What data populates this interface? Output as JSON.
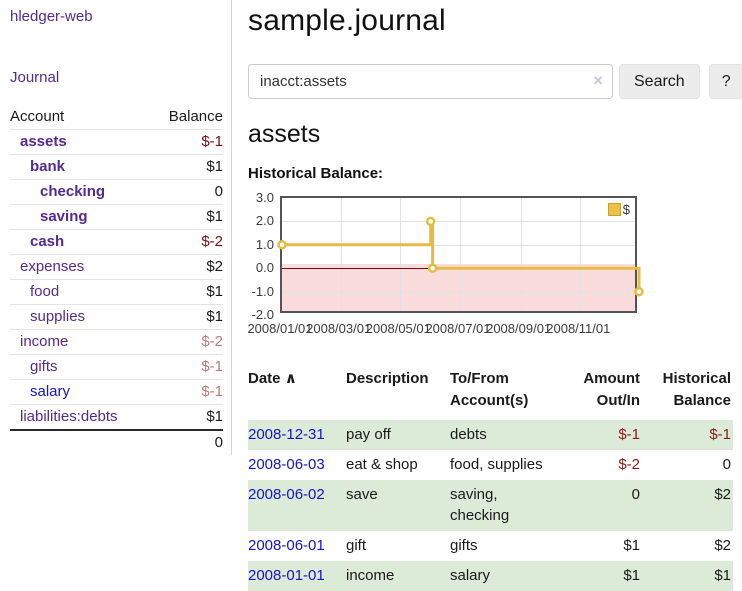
{
  "app": {
    "title": "hledger-web"
  },
  "sidebar": {
    "journal_label": "Journal",
    "accounts_table": {
      "col_account": "Account",
      "col_balance": "Balance",
      "rows": [
        {
          "label": "assets",
          "balance": "$-1",
          "indent": 1,
          "bold": true,
          "link": "purple",
          "bal_class": "neg-strong"
        },
        {
          "label": "bank",
          "balance": "$1",
          "indent": 2,
          "bold": true,
          "link": "purple",
          "bal_class": ""
        },
        {
          "label": "checking",
          "balance": "0",
          "indent": 3,
          "bold": true,
          "link": "purple",
          "bal_class": ""
        },
        {
          "label": "saving",
          "balance": "$1",
          "indent": 3,
          "bold": true,
          "link": "purple",
          "bal_class": ""
        },
        {
          "label": "cash",
          "balance": "$-2",
          "indent": 2,
          "bold": true,
          "link": "purple",
          "bal_class": "neg-strong"
        },
        {
          "label": "expenses",
          "balance": "$2",
          "indent": 1,
          "bold": false,
          "link": "purple",
          "bal_class": ""
        },
        {
          "label": "food",
          "balance": "$1",
          "indent": 2,
          "bold": false,
          "link": "purple",
          "bal_class": ""
        },
        {
          "label": "supplies",
          "balance": "$1",
          "indent": 2,
          "bold": false,
          "link": "purple",
          "bal_class": ""
        },
        {
          "label": "income",
          "balance": "$-2",
          "indent": 1,
          "bold": false,
          "link": "purple",
          "bal_class": "neg-dim"
        },
        {
          "label": "gifts",
          "balance": "$-1",
          "indent": 2,
          "bold": false,
          "link": "purple",
          "bal_class": "neg-dim"
        },
        {
          "label": "salary",
          "balance": "$-1",
          "indent": 2,
          "bold": false,
          "link": "blue",
          "bal_class": "neg-dim"
        },
        {
          "label": "liabilities:debts",
          "balance": "$1",
          "indent": 1,
          "bold": false,
          "link": "purple",
          "bal_class": ""
        }
      ],
      "total": "0"
    }
  },
  "main": {
    "title": "sample.journal",
    "search": {
      "value": "inacct:assets",
      "clear_icon": "×",
      "button_label": "Search",
      "help_label": "?"
    },
    "account_heading": "assets",
    "chart_heading": "Historical Balance:"
  },
  "chart_data": {
    "type": "line",
    "step": true,
    "title": "Historical Balance",
    "legend": {
      "label": "$",
      "position": "top-right"
    },
    "series": [
      {
        "name": "$",
        "color": "#e7bc45",
        "points": [
          [
            "2008/01/01",
            1
          ],
          [
            "2008/06/01",
            2
          ],
          [
            "2008/06/03",
            0
          ],
          [
            "2008/12/31",
            -1
          ]
        ]
      }
    ],
    "x_range": [
      "2008/01/01",
      "2008/12/31"
    ],
    "x_ticks": [
      "2008/01/01",
      "2008/03/01",
      "2008/05/01",
      "2008/07/01",
      "2008/09/01",
      "2008/11/01"
    ],
    "y_ticks": [
      "3.0",
      "2.0",
      "1.0",
      "0.0",
      "-1.0",
      "-2.0"
    ],
    "ylim": [
      -2,
      3
    ],
    "grid": true,
    "zero_line_color": "#8b0000",
    "negative_region_color": "#fadcdc"
  },
  "register": {
    "headers": [
      "Date",
      "Description",
      "To/From Account(s)",
      "Amount Out/In",
      "Historical Balance"
    ],
    "sort_indicator": "∧",
    "rows": [
      {
        "date": "2008-12-31",
        "description": "pay off",
        "accounts": "debts",
        "amount": "$-1",
        "balance": "$-1",
        "amount_neg": true,
        "balance_neg": true,
        "shaded": true
      },
      {
        "date": "2008-06-03",
        "description": "eat & shop",
        "accounts": "food, supplies",
        "amount": "$-2",
        "balance": "0",
        "amount_neg": true,
        "balance_neg": false,
        "shaded": false
      },
      {
        "date": "2008-06-02",
        "description": "save",
        "accounts": "saving, checking",
        "amount": "0",
        "balance": "$2",
        "amount_neg": false,
        "balance_neg": false,
        "shaded": true
      },
      {
        "date": "2008-06-01",
        "description": "gift",
        "accounts": "gifts",
        "amount": "$1",
        "balance": "$2",
        "amount_neg": false,
        "balance_neg": false,
        "shaded": false
      },
      {
        "date": "2008-01-01",
        "description": "income",
        "accounts": "salary",
        "amount": "$1",
        "balance": "$1",
        "amount_neg": false,
        "balance_neg": false,
        "shaded": true
      }
    ]
  }
}
